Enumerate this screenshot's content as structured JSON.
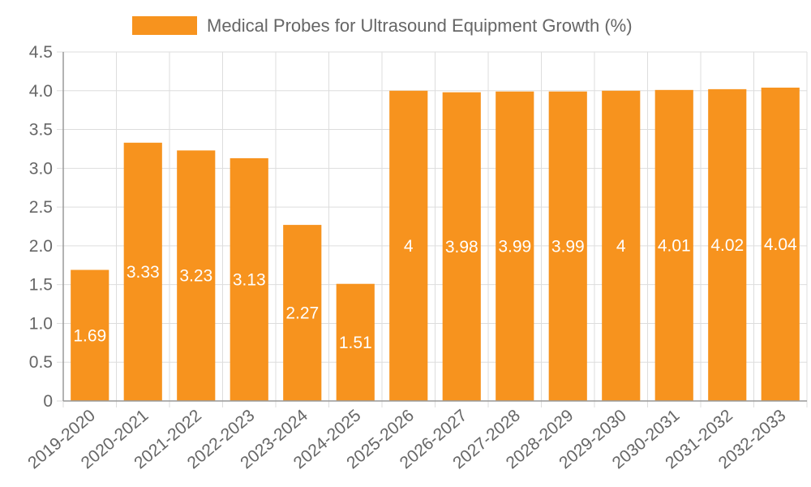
{
  "chart_data": {
    "type": "bar",
    "title": "",
    "legend": {
      "label": "Medical Probes for Ultrasound Equipment Growth (%)",
      "position": "top-center"
    },
    "categories": [
      "2019-2020",
      "2020-2021",
      "2021-2022",
      "2022-2023",
      "2023-2024",
      "2024-2025",
      "2025-2026",
      "2026-2027",
      "2027-2028",
      "2028-2029",
      "2029-2030",
      "2030-2031",
      "2031-2032",
      "2032-2033"
    ],
    "values": [
      1.69,
      3.33,
      3.23,
      3.13,
      2.27,
      1.51,
      4,
      3.98,
      3.99,
      3.99,
      4,
      4.01,
      4.02,
      4.04
    ],
    "data_labels": [
      "1.69",
      "3.33",
      "3.23",
      "3.13",
      "2.27",
      "1.51",
      "4",
      "3.98",
      "3.99",
      "3.99",
      "4",
      "4.01",
      "4.02",
      "4.04"
    ],
    "y_ticks": [
      "0",
      "0.5",
      "1.0",
      "1.5",
      "2.0",
      "2.5",
      "3.0",
      "3.5",
      "4.0",
      "4.5"
    ],
    "ylim": [
      0,
      4.5
    ],
    "xlabel": "",
    "ylabel": "",
    "grid": true,
    "bar_color": "#f7931e",
    "label_color": "#ffffff"
  }
}
